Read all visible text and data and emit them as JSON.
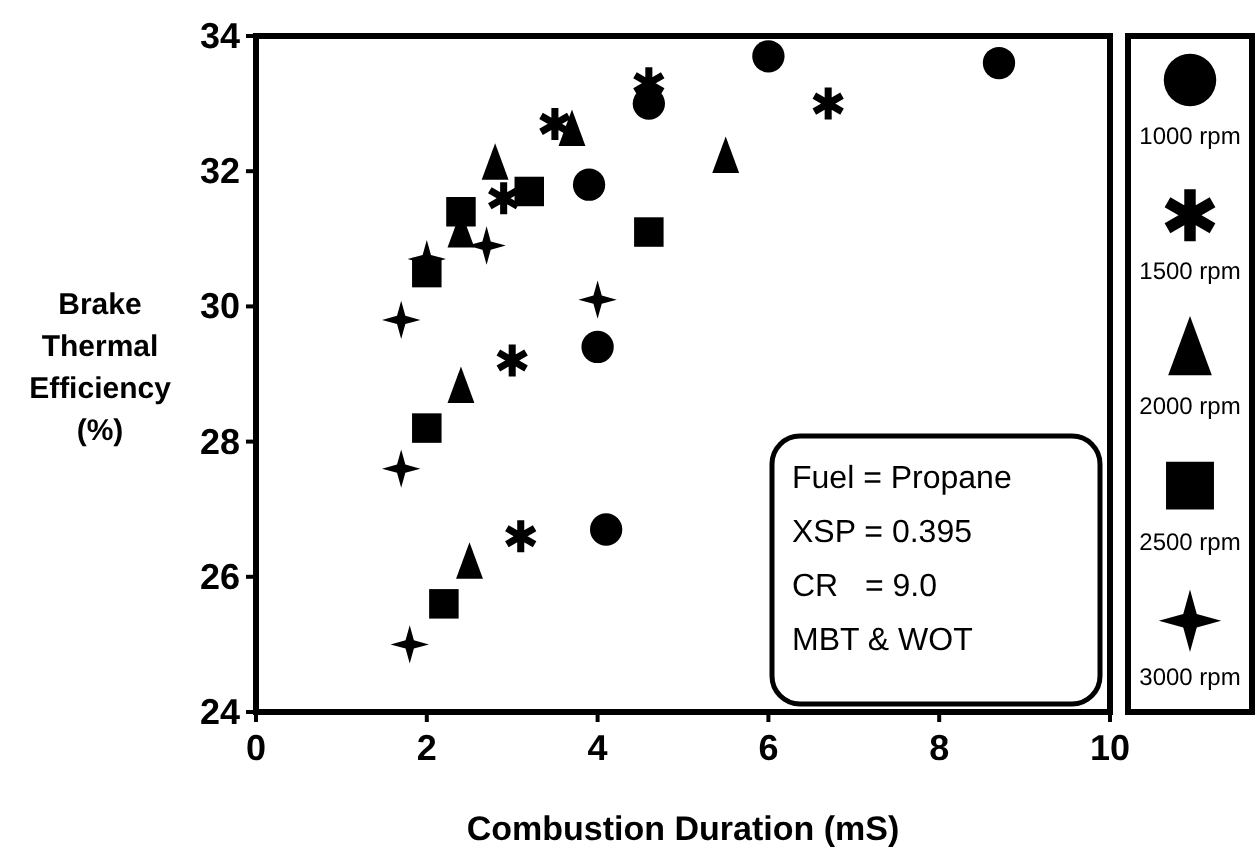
{
  "chart_data": {
    "type": "scatter",
    "xlabel": "Combustion Duration (mS)",
    "ylabel": "Brake Thermal Efficiency (%)",
    "xlim": [
      0,
      10
    ],
    "xticks": [
      0,
      2,
      4,
      6,
      8,
      10
    ],
    "ylim": [
      24,
      34
    ],
    "yticks": [
      24,
      26,
      28,
      30,
      32,
      34
    ],
    "grid": false,
    "legend": "right",
    "annotations": [
      "Fuel = Propane",
      "XSP = 0.395",
      "CR   = 9.0",
      "MBT & WOT"
    ],
    "series": [
      {
        "name": "1000 rpm",
        "color": "#000000",
        "marker": "circle",
        "x": [
          4.1,
          4.0,
          3.9,
          4.6,
          6.0,
          8.7
        ],
        "values": [
          26.7,
          29.4,
          31.8,
          33.0,
          33.7,
          33.6
        ]
      },
      {
        "name": "1500 rpm",
        "color": "#000000",
        "marker": "cross",
        "x": [
          3.1,
          3.0,
          2.9,
          3.5,
          4.6,
          6.7
        ],
        "values": [
          26.6,
          29.2,
          31.6,
          32.7,
          33.3,
          33.0
        ]
      },
      {
        "name": "2000 rpm",
        "color": "#000000",
        "marker": "triangle",
        "x": [
          2.5,
          2.4,
          2.4,
          2.8,
          3.7,
          5.5
        ],
        "values": [
          26.2,
          28.8,
          31.1,
          32.1,
          32.6,
          32.2
        ]
      },
      {
        "name": "2500 rpm",
        "color": "#000000",
        "marker": "square",
        "x": [
          2.2,
          2.0,
          2.0,
          2.4,
          3.2,
          4.6
        ],
        "values": [
          25.6,
          28.2,
          30.5,
          31.4,
          31.7,
          31.1
        ]
      },
      {
        "name": "3000 rpm",
        "color": "#000000",
        "marker": "star",
        "x": [
          1.8,
          1.7,
          1.7,
          2.0,
          2.7,
          4.0
        ],
        "values": [
          25.0,
          27.6,
          29.8,
          30.7,
          30.9,
          30.1
        ]
      }
    ]
  }
}
